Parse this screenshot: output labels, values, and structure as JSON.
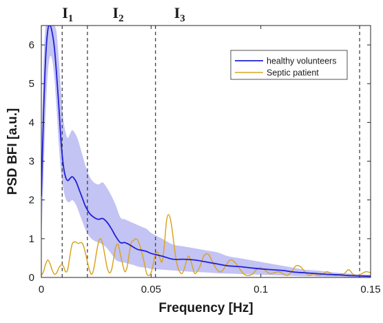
{
  "chart_data": {
    "type": "line",
    "title": "",
    "xlabel": "Frequency [Hz]",
    "ylabel": "PSD BFI [a.u.]",
    "xlim": [
      0,
      0.15
    ],
    "ylim": [
      0,
      6.5
    ],
    "x_ticks": [
      0,
      0.05,
      0.1,
      0.15
    ],
    "x_tick_labels": [
      "0",
      "0.05",
      "0.1",
      "0.15"
    ],
    "y_ticks": [
      0,
      1,
      2,
      3,
      4,
      5,
      6
    ],
    "y_tick_labels": [
      "0",
      "1",
      "2",
      "3",
      "4",
      "5",
      "6"
    ],
    "grid": false,
    "legend_position": "top-right",
    "interval_lines": [
      0.0095,
      0.021,
      0.052,
      0.145
    ],
    "interval_labels": [
      {
        "base": "I",
        "sub": "1",
        "x": 0.012
      },
      {
        "base": "I",
        "sub": "2",
        "x": 0.035
      },
      {
        "base": "I",
        "sub": "3",
        "x": 0.063
      }
    ],
    "series": [
      {
        "name": "healthy volunteers",
        "color": "#1f1fd6",
        "band_color": "#b9b9f2",
        "x": [
          0,
          0.001,
          0.002,
          0.003,
          0.004,
          0.005,
          0.006,
          0.007,
          0.008,
          0.009,
          0.01,
          0.011,
          0.012,
          0.013,
          0.014,
          0.015,
          0.016,
          0.017,
          0.018,
          0.019,
          0.02,
          0.022,
          0.024,
          0.026,
          0.028,
          0.03,
          0.032,
          0.034,
          0.036,
          0.038,
          0.04,
          0.042,
          0.044,
          0.046,
          0.048,
          0.05,
          0.055,
          0.06,
          0.065,
          0.07,
          0.075,
          0.08,
          0.085,
          0.09,
          0.095,
          0.1,
          0.105,
          0.11,
          0.115,
          0.12,
          0.125,
          0.13,
          0.135,
          0.14,
          0.145,
          0.15
        ],
        "values": [
          2.1,
          4.2,
          5.7,
          6.4,
          6.5,
          6.3,
          5.9,
          5.2,
          4.4,
          3.5,
          2.9,
          2.6,
          2.5,
          2.55,
          2.6,
          2.55,
          2.45,
          2.3,
          2.15,
          2.0,
          1.85,
          1.65,
          1.55,
          1.5,
          1.52,
          1.42,
          1.25,
          1.05,
          0.9,
          0.9,
          0.85,
          0.78,
          0.72,
          0.7,
          0.67,
          0.62,
          0.55,
          0.47,
          0.47,
          0.45,
          0.4,
          0.35,
          0.3,
          0.28,
          0.25,
          0.22,
          0.2,
          0.18,
          0.14,
          0.12,
          0.1,
          0.08,
          0.07,
          0.05,
          0.04,
          0.03
        ],
        "lower": [
          0.9,
          2.6,
          4.3,
          5.3,
          5.7,
          5.6,
          5.1,
          4.3,
          3.4,
          2.7,
          2.3,
          2.05,
          1.95,
          1.95,
          2.0,
          1.95,
          1.85,
          1.7,
          1.55,
          1.4,
          1.25,
          1.05,
          0.95,
          0.9,
          0.85,
          0.75,
          0.6,
          0.45,
          0.4,
          0.38,
          0.35,
          0.32,
          0.28,
          0.26,
          0.25,
          0.22,
          0.2,
          0.18,
          0.16,
          0.14,
          0.13,
          0.11,
          0.1,
          0.09,
          0.08,
          0.07,
          0.06,
          0.05,
          0.04,
          0.03,
          0.03,
          0.02,
          0.02,
          0.01,
          0.01,
          0.01
        ],
        "upper": [
          3.0,
          5.5,
          6.5,
          6.5,
          6.5,
          6.5,
          6.5,
          6.3,
          5.6,
          4.8,
          4.1,
          3.75,
          3.6,
          3.7,
          3.8,
          3.75,
          3.65,
          3.5,
          3.3,
          3.1,
          2.9,
          2.6,
          2.45,
          2.4,
          2.45,
          2.3,
          2.1,
          1.85,
          1.55,
          1.5,
          1.45,
          1.4,
          1.35,
          1.3,
          1.25,
          1.15,
          1.0,
          0.85,
          0.8,
          0.75,
          0.7,
          0.65,
          0.55,
          0.5,
          0.45,
          0.4,
          0.35,
          0.3,
          0.25,
          0.2,
          0.18,
          0.15,
          0.12,
          0.1,
          0.08,
          0.07
        ]
      },
      {
        "name": "Septic patient",
        "color": "#d9a521",
        "x": [
          0,
          0.001,
          0.002,
          0.003,
          0.004,
          0.005,
          0.006,
          0.007,
          0.008,
          0.009,
          0.01,
          0.011,
          0.012,
          0.013,
          0.014,
          0.015,
          0.016,
          0.017,
          0.018,
          0.019,
          0.02,
          0.021,
          0.022,
          0.023,
          0.024,
          0.025,
          0.026,
          0.027,
          0.028,
          0.029,
          0.03,
          0.031,
          0.032,
          0.033,
          0.034,
          0.035,
          0.036,
          0.037,
          0.038,
          0.039,
          0.04,
          0.041,
          0.042,
          0.043,
          0.044,
          0.045,
          0.046,
          0.047,
          0.048,
          0.049,
          0.05,
          0.051,
          0.052,
          0.053,
          0.054,
          0.055,
          0.056,
          0.057,
          0.058,
          0.059,
          0.06,
          0.061,
          0.062,
          0.063,
          0.064,
          0.065,
          0.066,
          0.067,
          0.068,
          0.069,
          0.07,
          0.072,
          0.074,
          0.076,
          0.078,
          0.08,
          0.082,
          0.084,
          0.086,
          0.088,
          0.09,
          0.092,
          0.094,
          0.096,
          0.098,
          0.1,
          0.102,
          0.104,
          0.106,
          0.108,
          0.11,
          0.112,
          0.114,
          0.116,
          0.118,
          0.12,
          0.122,
          0.124,
          0.126,
          0.128,
          0.13,
          0.132,
          0.134,
          0.136,
          0.138,
          0.14,
          0.142,
          0.144,
          0.146,
          0.148,
          0.15
        ],
        "values": [
          0.05,
          0.15,
          0.35,
          0.45,
          0.35,
          0.18,
          0.08,
          0.12,
          0.25,
          0.32,
          0.3,
          0.15,
          0.2,
          0.55,
          0.85,
          0.92,
          0.9,
          0.88,
          0.9,
          0.85,
          0.65,
          0.4,
          0.18,
          0.08,
          0.25,
          0.6,
          0.9,
          1.0,
          0.85,
          0.55,
          0.25,
          0.12,
          0.2,
          0.5,
          0.8,
          0.85,
          0.6,
          0.35,
          0.15,
          0.25,
          0.6,
          0.9,
          0.95,
          1.0,
          0.95,
          0.8,
          0.6,
          0.35,
          0.1,
          0.05,
          0.12,
          0.35,
          0.6,
          0.65,
          0.5,
          0.4,
          0.8,
          1.45,
          1.62,
          1.45,
          1.05,
          0.6,
          0.3,
          0.15,
          0.1,
          0.2,
          0.4,
          0.55,
          0.45,
          0.25,
          0.1,
          0.25,
          0.55,
          0.6,
          0.4,
          0.2,
          0.15,
          0.3,
          0.45,
          0.4,
          0.25,
          0.1,
          0.05,
          0.08,
          0.2,
          0.25,
          0.18,
          0.1,
          0.12,
          0.15,
          0.1,
          0.05,
          0.15,
          0.3,
          0.28,
          0.15,
          0.05,
          0.1,
          0.05,
          0.08,
          0.15,
          0.1,
          0.05,
          0.08,
          0.1,
          0.2,
          0.08,
          0.04,
          0.1,
          0.15,
          0.12
        ]
      }
    ]
  }
}
